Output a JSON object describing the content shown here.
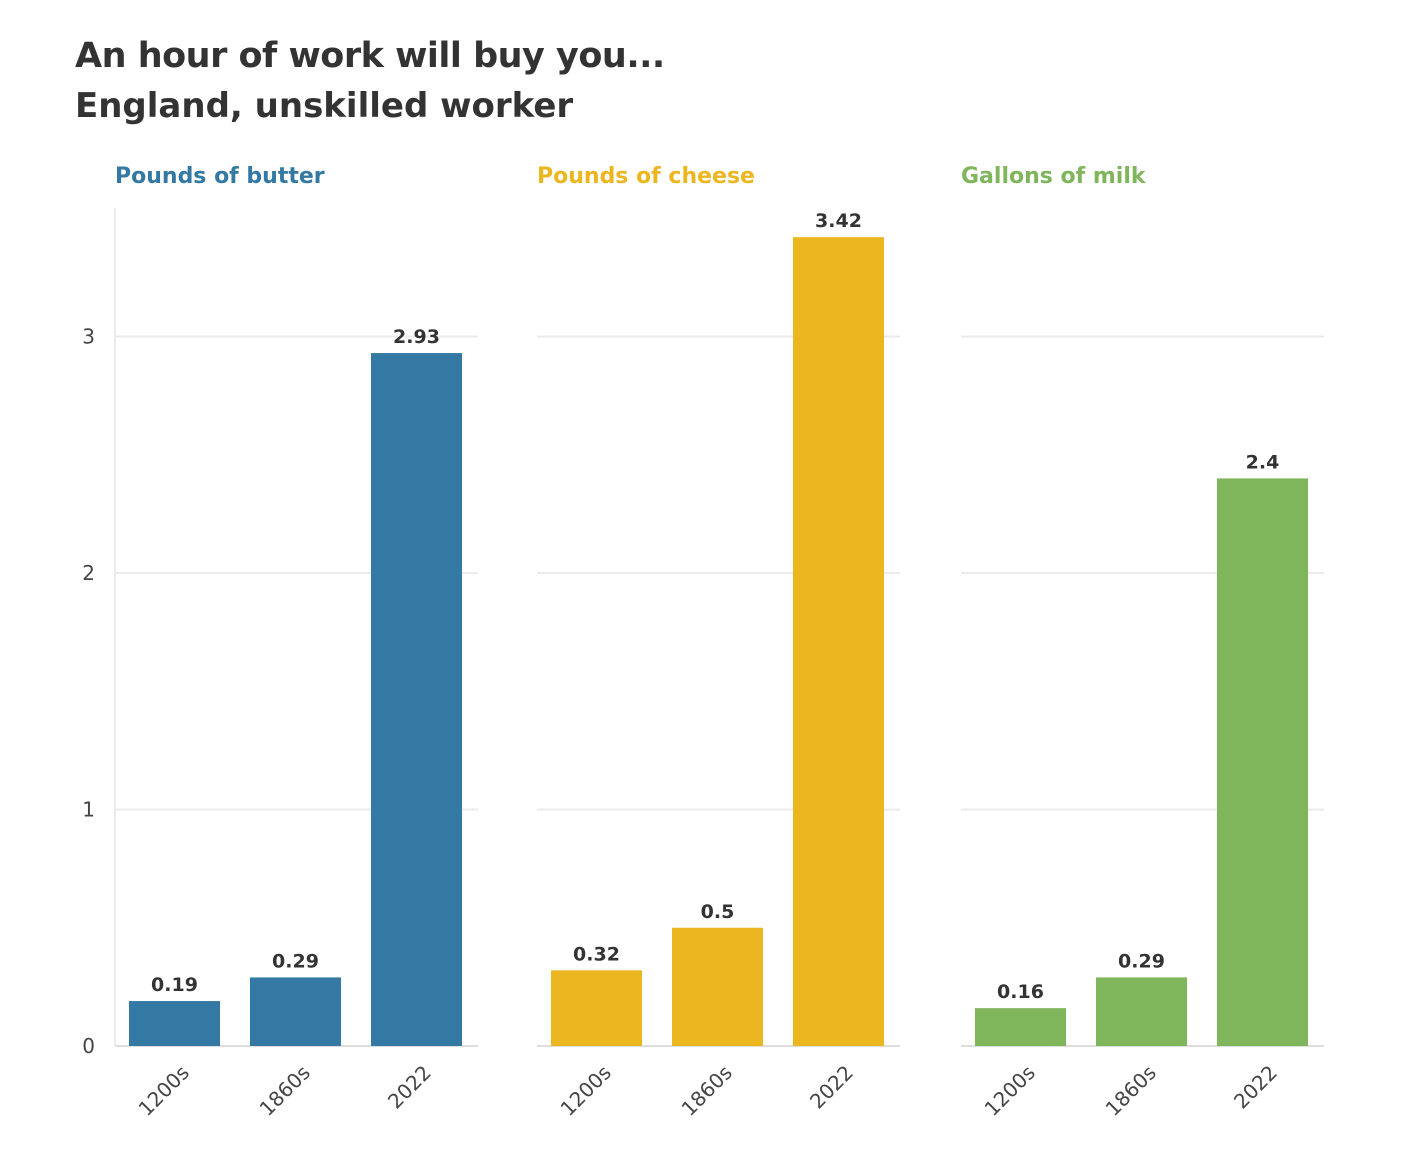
{
  "title": "An hour of work will buy you...",
  "subtitle": "England, unskilled worker",
  "chart_data": [
    {
      "type": "bar",
      "title": "Pounds of butter",
      "color": "#3379a3",
      "categories": [
        "1200s",
        "1860s",
        "2022"
      ],
      "values": [
        0.19,
        0.29,
        2.93
      ],
      "value_labels": [
        "0.19",
        "0.29",
        "2.93"
      ],
      "ylim": [
        0,
        3.5
      ],
      "y_ticks": [
        "0",
        "1",
        "2",
        "3"
      ],
      "grid": true
    },
    {
      "type": "bar",
      "title": "Pounds of cheese",
      "color": "#ecb621",
      "categories": [
        "1200s",
        "1860s",
        "2022"
      ],
      "values": [
        0.32,
        0.5,
        3.42
      ],
      "value_labels": [
        "0.32",
        "0.5",
        "3.42"
      ],
      "ylim": [
        0,
        3.5
      ],
      "grid": true
    },
    {
      "type": "bar",
      "title": "Gallons of milk",
      "color": "#80b65b",
      "categories": [
        "1200s",
        "1860s",
        "2022"
      ],
      "values": [
        0.16,
        0.29,
        2.4
      ],
      "value_labels": [
        "0.16",
        "0.29",
        "2.4"
      ],
      "ylim": [
        0,
        3.5
      ],
      "grid": true
    }
  ]
}
